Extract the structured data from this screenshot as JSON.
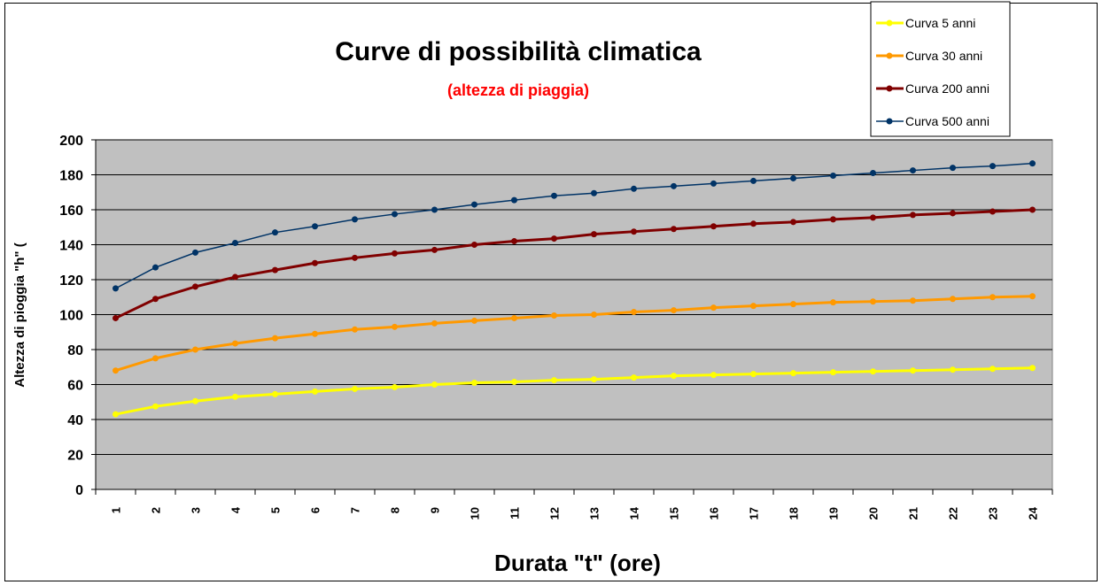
{
  "chart_data": {
    "type": "line",
    "title": "Curve di possibilità climatica",
    "subtitle": "(altezza di piaggia)",
    "xlabel": "Durata \"t\" (ore)",
    "ylabel": "Altezza di pioggia \"h\" (",
    "ylim": [
      0,
      200
    ],
    "yticks": [
      "0",
      "20",
      "40",
      "60",
      "80",
      "100",
      "120",
      "140",
      "160",
      "180",
      "200"
    ],
    "categories": [
      "1",
      "2",
      "3",
      "4",
      "5",
      "6",
      "7",
      "8",
      "9",
      "10",
      "11",
      "12",
      "13",
      "14",
      "15",
      "16",
      "17",
      "18",
      "19",
      "20",
      "21",
      "22",
      "23",
      "24"
    ],
    "grid": true,
    "legend_position": "top-right",
    "plot_background": "#c0c0c0",
    "series": [
      {
        "name": "Curva 5 anni",
        "color": "#ffff00",
        "values": [
          43,
          47.5,
          50.5,
          53,
          54.5,
          56,
          57.5,
          58.5,
          60,
          61,
          61.5,
          62.5,
          63,
          64,
          65,
          65.5,
          66,
          66.5,
          67,
          67.5,
          68,
          68.5,
          69,
          69.5
        ]
      },
      {
        "name": "Curva 30 anni",
        "color": "#ff9900",
        "values": [
          68,
          75,
          80,
          83.5,
          86.5,
          89,
          91.5,
          93,
          95,
          96.5,
          98,
          99.5,
          100,
          101.5,
          102.5,
          104,
          105,
          106,
          107,
          107.5,
          108,
          109,
          110,
          110.5
        ]
      },
      {
        "name": "Curva 200 anni",
        "color": "#800000",
        "values": [
          98,
          109,
          116,
          121.5,
          125.5,
          129.5,
          132.5,
          135,
          137,
          140,
          142,
          143.5,
          146,
          147.5,
          149,
          150.5,
          152,
          153,
          154.5,
          155.5,
          157,
          158,
          159,
          160
        ]
      },
      {
        "name": "Curva 500 anni",
        "color": "#003366",
        "values": [
          115,
          127,
          135.5,
          141,
          147,
          150.5,
          154.5,
          157.5,
          160,
          163,
          165.5,
          168,
          169.5,
          172,
          173.5,
          175,
          176.5,
          178,
          179.5,
          181,
          182.5,
          184,
          185,
          186.5
        ]
      }
    ]
  }
}
